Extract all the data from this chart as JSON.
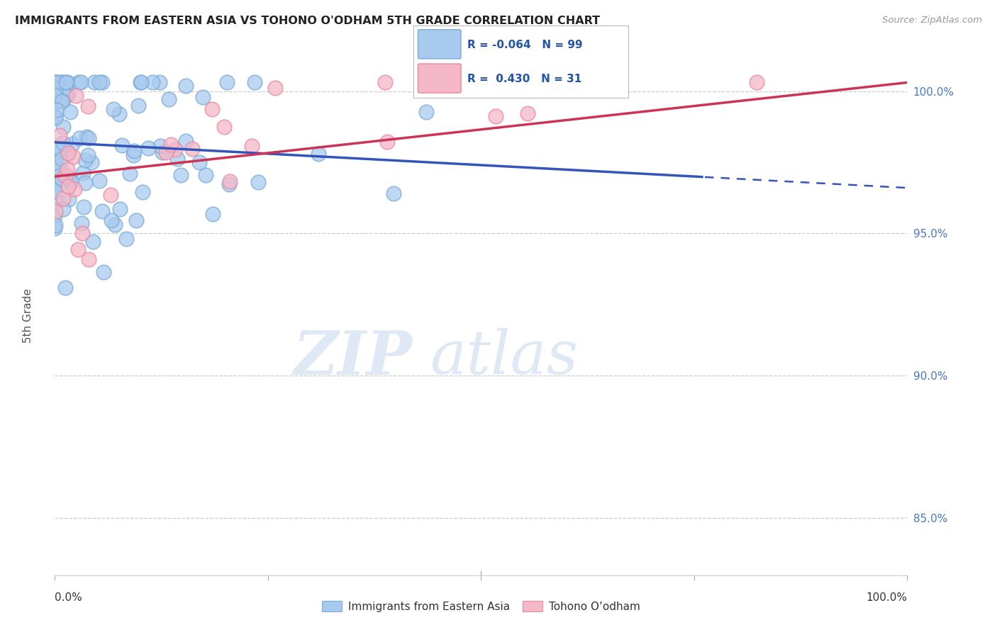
{
  "title": "IMMIGRANTS FROM EASTERN ASIA VS TOHONO O'ODHAM 5TH GRADE CORRELATION CHART",
  "source": "Source: ZipAtlas.com",
  "ylabel": "5th Grade",
  "legend_label_blue": "Immigrants from Eastern Asia",
  "legend_label_pink": "Tohono O’odham",
  "watermark_zip": "ZIP",
  "watermark_atlas": "atlas",
  "blue_color": "#A8CAEE",
  "blue_edge": "#7AAAD8",
  "pink_color": "#F5B8C8",
  "pink_edge": "#E888A0",
  "trend_blue_color": "#3355BB",
  "trend_pink_color": "#CC3355",
  "legend_text_color": "#2255AA",
  "ytick_color": "#4477CC",
  "ymin": 0.83,
  "ymax": 1.012,
  "xmin": 0.0,
  "xmax": 1.0,
  "yticks": [
    0.85,
    0.9,
    0.95,
    1.0
  ],
  "ytick_labels": [
    "85.0%",
    "90.0%",
    "95.0%",
    "100.0%"
  ],
  "blue_trend_start_x": 0.0,
  "blue_trend_start_y": 0.982,
  "blue_trend_end_x": 1.0,
  "blue_trend_end_y": 0.966,
  "blue_trend_solid_end": 0.76,
  "pink_trend_start_x": 0.0,
  "pink_trend_start_y": 0.97,
  "pink_trend_end_x": 1.0,
  "pink_trend_end_y": 1.003
}
